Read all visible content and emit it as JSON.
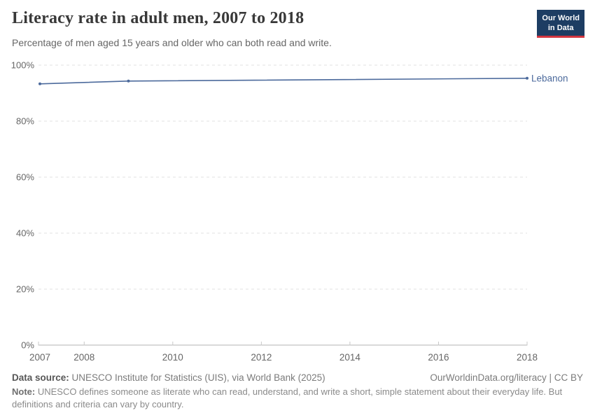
{
  "header": {
    "logo": {
      "line1": "Our World",
      "line2": "in Data"
    }
  },
  "chart_data": {
    "type": "line",
    "title": "Literacy rate in adult men, 2007 to 2018",
    "subtitle": "Percentage of men aged 15 years and older who can both read and write.",
    "xlim": [
      2007,
      2018
    ],
    "ylim": [
      0,
      100
    ],
    "x_ticks": [
      2007,
      2008,
      2010,
      2012,
      2014,
      2016,
      2018
    ],
    "y_ticks": [
      0,
      20,
      40,
      60,
      80,
      100
    ],
    "y_tick_suffix": "%",
    "grid": "horizontal-dashed",
    "legend_position": "right-of-line-end-label",
    "series": [
      {
        "name": "Lebanon",
        "color": "#4c6a9c",
        "points": [
          {
            "x": 2007,
            "y": 93.3
          },
          {
            "x": 2009,
            "y": 94.3
          },
          {
            "x": 2018,
            "y": 95.3
          }
        ]
      }
    ]
  },
  "footer": {
    "data_source_label": "Data source:",
    "data_source_text": " UNESCO Institute for Statistics (UIS), via World Bank (2025)",
    "attribution": "OurWorldinData.org/literacy | CC BY",
    "note_label": "Note:",
    "note_text": " UNESCO defines someone as literate who can read, understand, and write a short, simple statement about their everyday life. But definitions and criteria can vary by country."
  },
  "colors": {
    "line": "#4c6a9c",
    "entity_label": "#4c6a9c",
    "grid": "#e2e2e2",
    "axis": "#b3b3b3",
    "tick": "#c8c8c8",
    "tick_label": "#666666",
    "title": "#383838",
    "logo_bg": "#1d3d63",
    "logo_bar": "#d2353f"
  }
}
